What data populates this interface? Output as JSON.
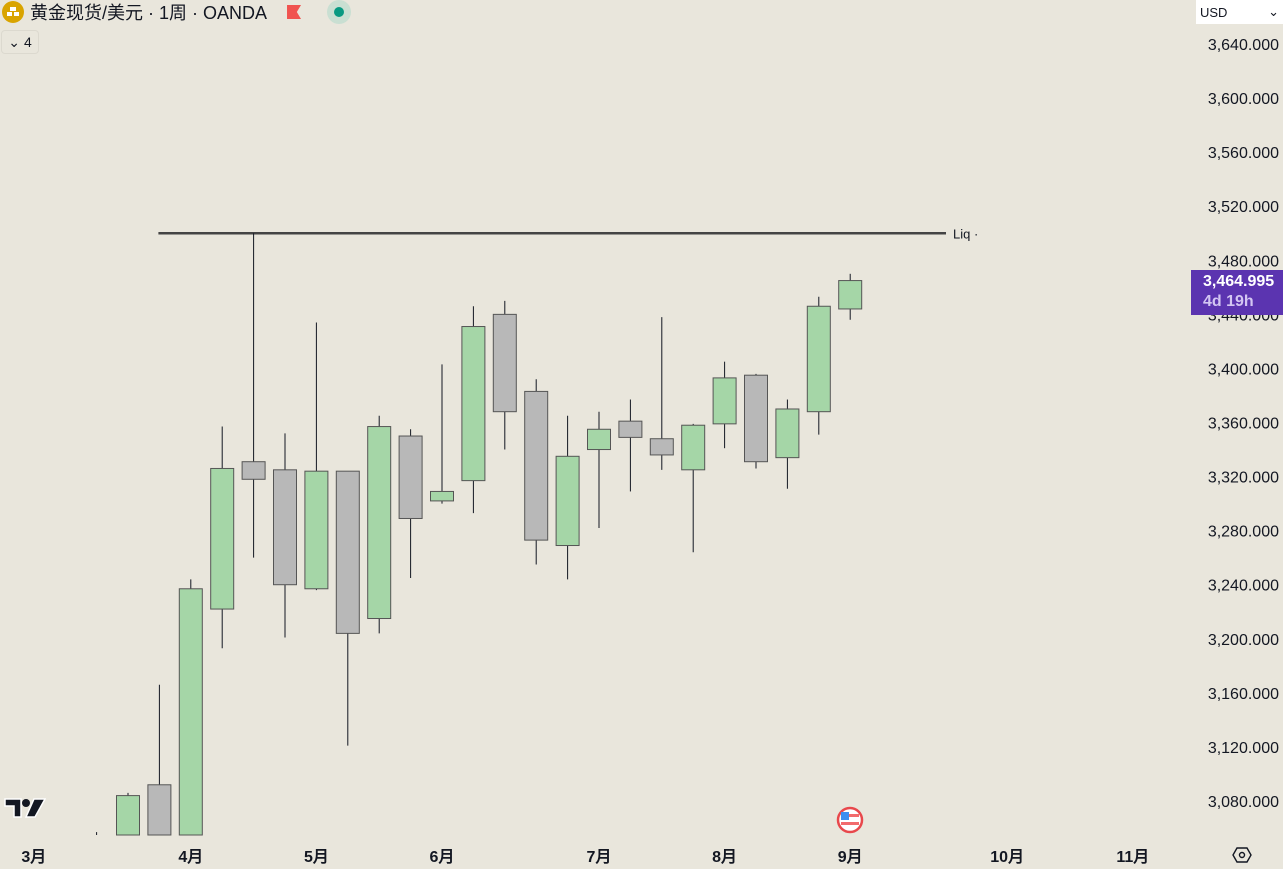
{
  "header": {
    "title": "黄金现货/美元 · 1周 · OANDA",
    "indicator_count": "4",
    "currency": "USD",
    "icons": [
      "gold-bars-icon",
      "flag-icon",
      "market-open-icon",
      "chevron-down-icon"
    ]
  },
  "last_price": {
    "value": "3,464.995",
    "countdown": "4d 19h"
  },
  "colors": {
    "up": "#a5d6a7",
    "down": "#b8b8b8",
    "border": "#555555",
    "line": "#444444",
    "background": "#e9e6dc",
    "price_tag": "#5b34b0"
  },
  "chart_data": {
    "type": "candlestick",
    "interval": "1周",
    "ylim": [
      3040,
      3660
    ],
    "y_ticks": [
      "3,080.000",
      "3,120.000",
      "3,160.000",
      "3,200.000",
      "3,240.000",
      "3,280.000",
      "3,320.000",
      "3,360.000",
      "3,400.000",
      "3,440.000",
      "3,480.000",
      "3,520.000",
      "3,560.000",
      "3,600.000",
      "3,640.000"
    ],
    "y_tick_values": [
      3080,
      3120,
      3160,
      3200,
      3240,
      3280,
      3320,
      3360,
      3400,
      3440,
      3480,
      3520,
      3560,
      3600,
      3640
    ],
    "x_ticks": [
      {
        "label": "3月",
        "date": "2025-03-03"
      },
      {
        "label": "4月",
        "date": "2025-04-07"
      },
      {
        "label": "5月",
        "date": "2025-05-05"
      },
      {
        "label": "6月",
        "date": "2025-06-02"
      },
      {
        "label": "7月",
        "date": "2025-07-07"
      },
      {
        "label": "8月",
        "date": "2025-08-04"
      },
      {
        "label": "9月",
        "date": "2025-09-01"
      },
      {
        "label": "10月",
        "date": "2025-10-06"
      },
      {
        "label": "11月",
        "date": "2025-11-03"
      }
    ],
    "candles": [
      {
        "date": "2025-03-17",
        "o": 3000,
        "h": 3057,
        "l": 2980,
        "c": 3020
      },
      {
        "date": "2025-03-24",
        "o": 3020,
        "h": 3086,
        "l": 3000,
        "c": 3084
      },
      {
        "date": "2025-03-31",
        "o": 3092,
        "h": 3166,
        "l": 3000,
        "c": 3030
      },
      {
        "date": "2025-04-07",
        "o": 3020,
        "h": 3244,
        "l": 2960,
        "c": 3237
      },
      {
        "date": "2025-04-14",
        "o": 3222,
        "h": 3357,
        "l": 3193,
        "c": 3326
      },
      {
        "date": "2025-04-21",
        "o": 3331,
        "h": 3500,
        "l": 3260,
        "c": 3318
      },
      {
        "date": "2025-04-28",
        "o": 3325,
        "h": 3352,
        "l": 3201,
        "c": 3240
      },
      {
        "date": "2025-05-05",
        "o": 3237,
        "h": 3434,
        "l": 3236,
        "c": 3324
      },
      {
        "date": "2025-05-12",
        "o": 3324,
        "h": 3324,
        "l": 3121,
        "c": 3204
      },
      {
        "date": "2025-05-19",
        "o": 3215,
        "h": 3365,
        "l": 3204,
        "c": 3357
      },
      {
        "date": "2025-05-26",
        "o": 3350,
        "h": 3355,
        "l": 3245,
        "c": 3289
      },
      {
        "date": "2025-06-02",
        "o": 3302,
        "h": 3403,
        "l": 3300,
        "c": 3309
      },
      {
        "date": "2025-06-09",
        "o": 3317,
        "h": 3446,
        "l": 3293,
        "c": 3431
      },
      {
        "date": "2025-06-16",
        "o": 3440,
        "h": 3450,
        "l": 3340,
        "c": 3368
      },
      {
        "date": "2025-06-23",
        "o": 3383,
        "h": 3392,
        "l": 3255,
        "c": 3273
      },
      {
        "date": "2025-06-30",
        "o": 3269,
        "h": 3365,
        "l": 3244,
        "c": 3335
      },
      {
        "date": "2025-07-07",
        "o": 3340,
        "h": 3368,
        "l": 3282,
        "c": 3355
      },
      {
        "date": "2025-07-14",
        "o": 3361,
        "h": 3377,
        "l": 3309,
        "c": 3349
      },
      {
        "date": "2025-07-21",
        "o": 3348,
        "h": 3438,
        "l": 3325,
        "c": 3336
      },
      {
        "date": "2025-07-28",
        "o": 3325,
        "h": 3359,
        "l": 3264,
        "c": 3358
      },
      {
        "date": "2025-08-04",
        "o": 3359,
        "h": 3405,
        "l": 3341,
        "c": 3393
      },
      {
        "date": "2025-08-11",
        "o": 3395,
        "h": 3396,
        "l": 3326,
        "c": 3331
      },
      {
        "date": "2025-08-18",
        "o": 3334,
        "h": 3377,
        "l": 3311,
        "c": 3370
      },
      {
        "date": "2025-08-25",
        "o": 3368,
        "h": 3453,
        "l": 3351,
        "c": 3446
      },
      {
        "date": "2025-09-01",
        "o": 3444,
        "h": 3470,
        "l": 3436,
        "c": 3464.995
      }
    ],
    "horizontal_line": {
      "price": 3500,
      "label": "Liq ·",
      "from": "2025-03-31",
      "to": "2026-01-05"
    },
    "events": [
      {
        "date": "2025-09-01",
        "type": "us-economic-event"
      }
    ]
  }
}
